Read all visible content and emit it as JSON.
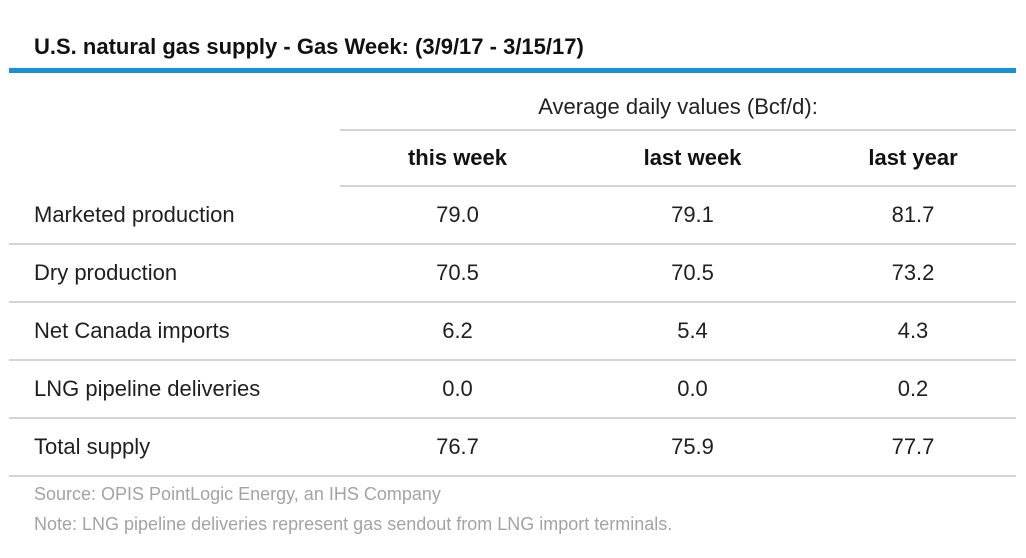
{
  "title": "U.S. natural gas supply - Gas Week: (3/9/17 - 3/15/17)",
  "colors": {
    "accent": "#1a8fd6",
    "rule": "#d4d4d4",
    "footnote": "#a3a3a3"
  },
  "table": {
    "group_header": "Average daily values (Bcf/d):",
    "columns": [
      "this week",
      "last week",
      "last year"
    ],
    "rows": [
      {
        "label": "Marketed production",
        "values": [
          "79.0",
          "79.1",
          "81.7"
        ]
      },
      {
        "label": "Dry production",
        "values": [
          "70.5",
          "70.5",
          "73.2"
        ]
      },
      {
        "label": "Net Canada imports",
        "values": [
          "6.2",
          "5.4",
          "4.3"
        ]
      },
      {
        "label": "LNG pipeline deliveries",
        "values": [
          "0.0",
          "0.0",
          "0.2"
        ]
      },
      {
        "label": "Total supply",
        "values": [
          "76.7",
          "75.9",
          "77.7"
        ]
      }
    ]
  },
  "footer": {
    "source": "Source: OPIS PointLogic Energy, an IHS Company",
    "note": "Note: LNG pipeline deliveries represent gas sendout from LNG import terminals."
  }
}
